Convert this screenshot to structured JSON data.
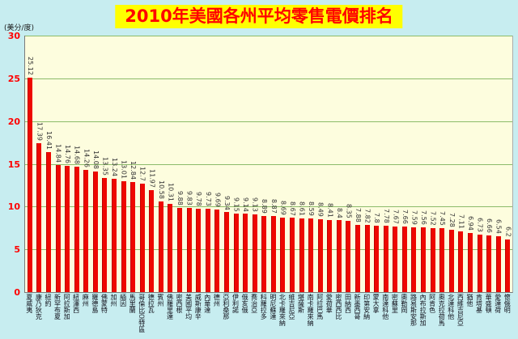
{
  "title": "2010年美國各州平均零售電價排名",
  "y_axis_unit": "(美分/度)",
  "colors": {
    "background": "#c7edf0",
    "plot_background": "#fdfdde",
    "bar": "#ee0800",
    "gridline": "#8cbb6a",
    "title_background": "#ffff00",
    "title_text": "#ff0000",
    "tick_text": "#ff0000"
  },
  "chart_data": {
    "type": "bar",
    "title": "2010年美國各州平均零售電價排名",
    "xlabel": "",
    "ylabel": "(美分/度)",
    "ylim": [
      0,
      30
    ],
    "yticks": [
      0,
      5,
      10,
      15,
      20,
      25,
      30
    ],
    "grid": true,
    "legend": false,
    "categories": [
      "夏威夷",
      "康乃狄克",
      "紐約",
      "新罕布夏",
      "阿拉斯加",
      "紐澤西",
      "麻州",
      "羅德島",
      "佛蒙特",
      "加州",
      "緬因",
      "馬里蘭",
      "哥倫比亞特區",
      "德拉瓦",
      "賓州",
      "佛羅里達",
      "密西根",
      "美國平均",
      "威斯康辛",
      "內華達",
      "德州",
      "亞利桑那",
      "伊利諾",
      "俄亥俄",
      "喬治亞",
      "科羅拉多",
      "明尼蘇達",
      "北卡羅來納",
      "維吉尼亞",
      "堪薩斯",
      "南卡羅來納",
      "阿拉巴馬",
      "愛荷華",
      "密西西比",
      "田納西",
      "新墨西哥",
      "印第安納",
      "蒙大拿",
      "南達科他",
      "密蘇里",
      "奧勒岡",
      "路易斯安那",
      "內布拉斯加",
      "阿肯色",
      "奧克拉荷馬",
      "北達科他",
      "西維吉尼亞",
      "猶他",
      "肯塔基",
      "華盛頓",
      "愛達荷",
      "懷俄明"
    ],
    "values": [
      25.12,
      17.39,
      16.41,
      14.84,
      14.76,
      14.68,
      14.26,
      14.08,
      13.35,
      13.24,
      13.01,
      12.84,
      12.7,
      11.97,
      10.58,
      10.31,
      9.88,
      9.83,
      9.78,
      9.73,
      9.69,
      9.34,
      9.15,
      9.14,
      9.13,
      8.89,
      8.87,
      8.69,
      8.67,
      8.61,
      8.59,
      8.49,
      8.41,
      8.4,
      8.35,
      7.88,
      7.82,
      7.8,
      7.78,
      7.67,
      7.66,
      7.59,
      7.56,
      7.52,
      7.45,
      7.28,
      7.11,
      6.94,
      6.73,
      6.66,
      6.54,
      6.2
    ]
  }
}
